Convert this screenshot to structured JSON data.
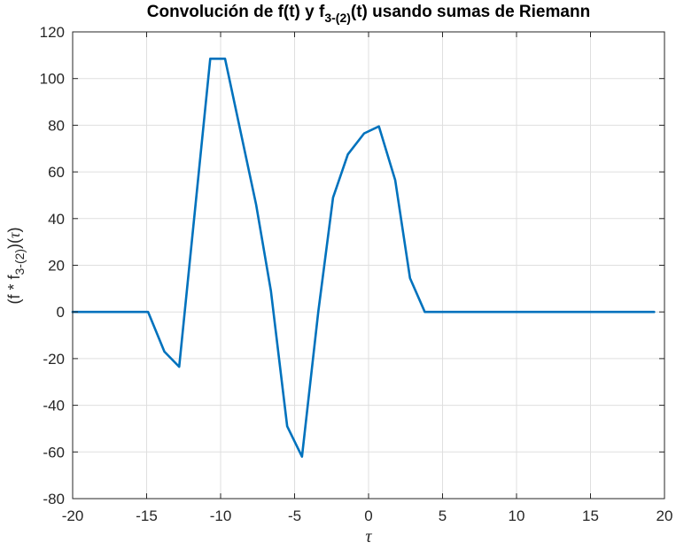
{
  "chart_data": {
    "type": "line",
    "title": {
      "main": "Convolución de f(t) y f",
      "sub": "3-(2)",
      "tail": "(t) usando sumas de Riemann"
    },
    "xlabel": "τ",
    "ylabel": {
      "pre": "(f * f",
      "sub": "3-(2)",
      "post": ")(",
      "italic": "τ",
      "close": ")"
    },
    "xlim": [
      -20,
      20
    ],
    "ylim": [
      -80,
      120
    ],
    "xticks": [
      -20,
      -15,
      -10,
      -5,
      0,
      5,
      10,
      15,
      20
    ],
    "yticks": [
      -80,
      -60,
      -40,
      -20,
      0,
      20,
      40,
      60,
      80,
      100,
      120
    ],
    "xtick_labels": [
      "-20",
      "-15",
      "-10",
      "-5",
      "0",
      "5",
      "10",
      "15",
      "20"
    ],
    "ytick_labels": [
      "-80",
      "-60",
      "-40",
      "-20",
      "0",
      "20",
      "40",
      "60",
      "80",
      "100",
      "120"
    ],
    "grid": true,
    "series": [
      {
        "color": "#0072BD",
        "x": [
          -20,
          -14.9,
          -13.8,
          -12.8,
          -10.7,
          -9.7,
          -7.6,
          -6.6,
          -5.5,
          -4.5,
          -3.4,
          -2.4,
          -1.4,
          -0.3,
          0.7,
          1.8,
          2.8,
          3.8,
          19.3
        ],
        "y": [
          0,
          0,
          -17,
          -23.5,
          108.5,
          108.5,
          46,
          9,
          -49,
          -62,
          0,
          49,
          67.5,
          76.5,
          79.5,
          56.5,
          14.5,
          0,
          0
        ]
      }
    ]
  }
}
